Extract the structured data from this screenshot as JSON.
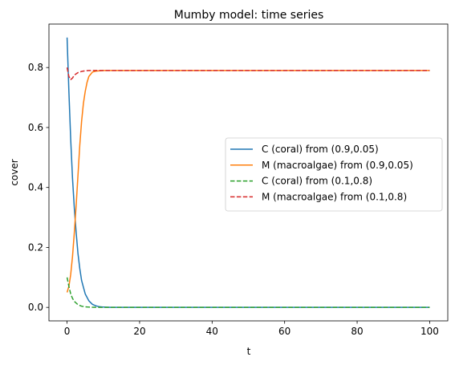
{
  "chart_data": {
    "type": "line",
    "title": "Mumby model: time series",
    "xlabel": "t",
    "ylabel": "cover",
    "xlim": [
      -5,
      105
    ],
    "ylim": [
      -0.045,
      0.945
    ],
    "xticks": [
      0,
      20,
      40,
      60,
      80,
      100
    ],
    "yticks": [
      0.0,
      0.2,
      0.4,
      0.6,
      0.8
    ],
    "ytick_labels": [
      "0.0",
      "0.2",
      "0.4",
      "0.6",
      "0.8"
    ],
    "grid": false,
    "legend_position": "center-right",
    "series": [
      {
        "name": "C (coral) from (0.9,0.05)",
        "color": "#1f77b4",
        "style": "solid",
        "x": [
          0,
          0.5,
          1,
          1.5,
          2,
          2.5,
          3,
          3.5,
          4,
          5,
          6,
          7,
          8,
          9,
          10,
          12,
          15,
          20,
          30,
          40,
          50,
          60,
          70,
          80,
          90,
          100
        ],
        "y": [
          0.9,
          0.72,
          0.56,
          0.43,
          0.33,
          0.25,
          0.18,
          0.13,
          0.09,
          0.045,
          0.022,
          0.01,
          0.005,
          0.002,
          0.001,
          0.0,
          0.0,
          0.0,
          0.0,
          0.0,
          0.0,
          0.0,
          0.0,
          0.0,
          0.0,
          0.0
        ]
      },
      {
        "name": "M (macroalgae) from (0.9,0.05)",
        "color": "#ff7f0e",
        "style": "solid",
        "x": [
          0,
          0.5,
          1,
          1.5,
          2,
          2.5,
          3,
          3.5,
          4,
          4.5,
          5,
          5.5,
          6,
          7,
          8,
          9,
          10,
          12,
          15,
          20,
          30,
          40,
          50,
          60,
          70,
          80,
          90,
          100
        ],
        "y": [
          0.05,
          0.07,
          0.11,
          0.17,
          0.25,
          0.34,
          0.44,
          0.54,
          0.62,
          0.68,
          0.72,
          0.75,
          0.77,
          0.785,
          0.788,
          0.789,
          0.79,
          0.79,
          0.79,
          0.79,
          0.79,
          0.79,
          0.79,
          0.79,
          0.79,
          0.79,
          0.79,
          0.79
        ]
      },
      {
        "name": "C (coral) from (0.1,0.8)",
        "color": "#2ca02c",
        "style": "dashed",
        "x": [
          0,
          0.5,
          1,
          1.5,
          2,
          3,
          4,
          5,
          6,
          8,
          10,
          15,
          20,
          30,
          40,
          50,
          60,
          70,
          80,
          90,
          100
        ],
        "y": [
          0.1,
          0.07,
          0.045,
          0.03,
          0.02,
          0.009,
          0.004,
          0.002,
          0.001,
          0.0,
          0.0,
          0.0,
          0.0,
          0.0,
          0.0,
          0.0,
          0.0,
          0.0,
          0.0,
          0.0,
          0.0
        ]
      },
      {
        "name": "M (macroalgae) from (0.1,0.8)",
        "color": "#d62728",
        "style": "dashed",
        "x": [
          0,
          0.5,
          1,
          1.5,
          2,
          3,
          4,
          5,
          6,
          8,
          10,
          15,
          20,
          30,
          40,
          50,
          60,
          70,
          80,
          90,
          100
        ],
        "y": [
          0.8,
          0.77,
          0.76,
          0.765,
          0.775,
          0.783,
          0.787,
          0.789,
          0.79,
          0.79,
          0.79,
          0.79,
          0.79,
          0.79,
          0.79,
          0.79,
          0.79,
          0.79,
          0.79,
          0.79,
          0.79
        ]
      }
    ]
  }
}
